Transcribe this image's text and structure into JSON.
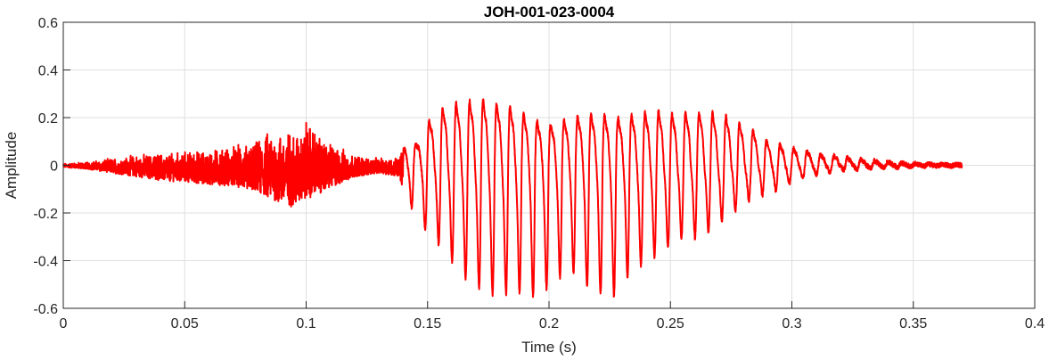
{
  "chart_data": {
    "type": "line",
    "title": "JOH-001-023-0004",
    "xlabel": "Time (s)",
    "ylabel": "Amplitude",
    "xlim": [
      0,
      0.4
    ],
    "ylim": [
      -0.6,
      0.6
    ],
    "grid": true,
    "xticks": [
      0,
      0.05,
      0.1,
      0.15,
      0.2,
      0.25,
      0.3,
      0.35,
      0.4
    ],
    "xtick_labels": [
      "0",
      "0.05",
      "0.1",
      "0.15",
      "0.2",
      "0.25",
      "0.3",
      "0.35",
      "0.4"
    ],
    "yticks": [
      -0.6,
      -0.4,
      -0.2,
      0,
      0.2,
      0.4,
      0.6
    ],
    "ytick_labels": [
      "-0.6",
      "-0.4",
      "-0.2",
      "0",
      "0.2",
      "0.4",
      "0.6"
    ],
    "series": [
      {
        "color": "#ff0000",
        "x": [
          0,
          0.01,
          0.02,
          0.03,
          0.04,
          0.05,
          0.06,
          0.07,
          0.08,
          0.085,
          0.09,
          0.095,
          0.1,
          0.105,
          0.11,
          0.12,
          0.13,
          0.138,
          0.14,
          0.1425,
          0.145,
          0.15,
          0.155,
          0.16,
          0.165,
          0.17,
          0.175,
          0.18,
          0.185,
          0.19,
          0.195,
          0.2,
          0.205,
          0.21,
          0.215,
          0.22,
          0.225,
          0.23,
          0.235,
          0.24,
          0.245,
          0.25,
          0.255,
          0.26,
          0.265,
          0.27,
          0.275,
          0.28,
          0.285,
          0.29,
          0.295,
          0.3,
          0.305,
          0.31,
          0.315,
          0.32,
          0.33,
          0.34,
          0.35,
          0.36,
          0.37
        ],
        "upper": [
          0.01,
          0.02,
          0.04,
          0.06,
          0.07,
          0.08,
          0.09,
          0.11,
          0.14,
          0.2,
          0.21,
          0.2,
          0.27,
          0.17,
          0.13,
          0.06,
          0.04,
          0.05,
          0.12,
          0.15,
          0.12,
          0.25,
          0.33,
          0.37,
          0.36,
          0.4,
          0.38,
          0.36,
          0.34,
          0.3,
          0.26,
          0.24,
          0.26,
          0.28,
          0.3,
          0.3,
          0.29,
          0.28,
          0.3,
          0.31,
          0.32,
          0.3,
          0.31,
          0.31,
          0.32,
          0.3,
          0.28,
          0.24,
          0.2,
          0.14,
          0.12,
          0.1,
          0.09,
          0.07,
          0.06,
          0.05,
          0.03,
          0.02,
          0.01,
          0.005,
          0.002
        ],
        "lower": [
          -0.01,
          -0.02,
          -0.04,
          -0.06,
          -0.08,
          -0.09,
          -0.1,
          -0.11,
          -0.14,
          -0.17,
          -0.21,
          -0.22,
          -0.18,
          -0.15,
          -0.12,
          -0.06,
          -0.04,
          -0.06,
          -0.12,
          -0.16,
          -0.2,
          -0.28,
          -0.33,
          -0.4,
          -0.46,
          -0.5,
          -0.53,
          -0.54,
          -0.52,
          -0.53,
          -0.55,
          -0.5,
          -0.46,
          -0.44,
          -0.5,
          -0.52,
          -0.57,
          -0.48,
          -0.44,
          -0.4,
          -0.37,
          -0.33,
          -0.3,
          -0.3,
          -0.28,
          -0.24,
          -0.2,
          -0.16,
          -0.13,
          -0.12,
          -0.1,
          -0.07,
          -0.05,
          -0.04,
          -0.03,
          -0.02,
          -0.015,
          -0.01,
          -0.005,
          -0.003,
          -0.002
        ],
        "cycles_per_second": 180
      }
    ]
  }
}
